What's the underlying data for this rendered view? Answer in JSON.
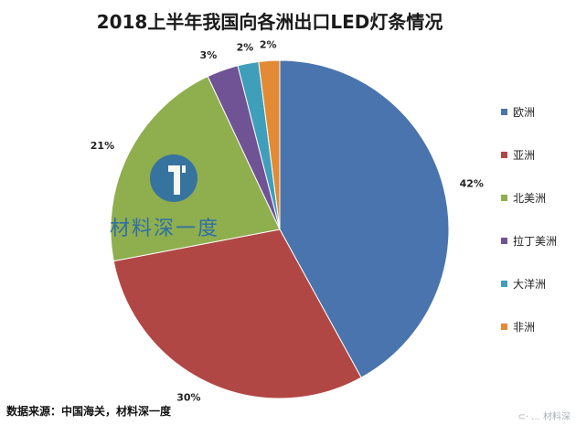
{
  "chart_data": {
    "type": "pie",
    "title": "2018上半年我国向各洲出口LED灯条情况",
    "categories": [
      "欧洲",
      "亚洲",
      "北美洲",
      "拉丁美洲",
      "大洋洲",
      "非洲"
    ],
    "values": [
      42,
      30,
      21,
      3,
      2,
      2
    ],
    "value_labels": [
      "42%",
      "30%",
      "21%",
      "3%",
      "2%",
      "2%"
    ],
    "colors": [
      "#4a74ad",
      "#b14744",
      "#8fae4e",
      "#6f5394",
      "#3f9fbb",
      "#e38a35"
    ],
    "legend_position": "right"
  },
  "source_note": "数据来源：中国海关，材料深一度",
  "logo": {
    "text": "材料深一度"
  },
  "corner_watermark": "⊂· ... 材料深"
}
